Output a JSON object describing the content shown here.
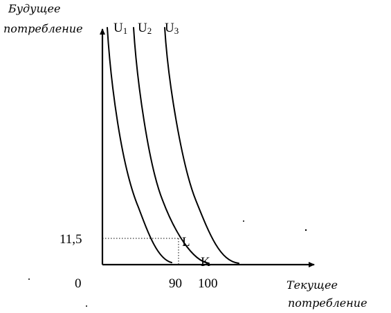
{
  "y_axis_title": [
    "Будущее",
    "потребление"
  ],
  "x_axis_title": [
    "Текущее",
    "потребление"
  ],
  "origin_label": "0",
  "y_tick_label": "11,5",
  "x_tick_labels": [
    "90",
    "100"
  ],
  "curves": [
    {
      "letter": "U",
      "sub": "1"
    },
    {
      "letter": "U",
      "sub": "2"
    },
    {
      "letter": "U",
      "sub": "3"
    }
  ],
  "point_labels": [
    "L",
    "K"
  ]
}
